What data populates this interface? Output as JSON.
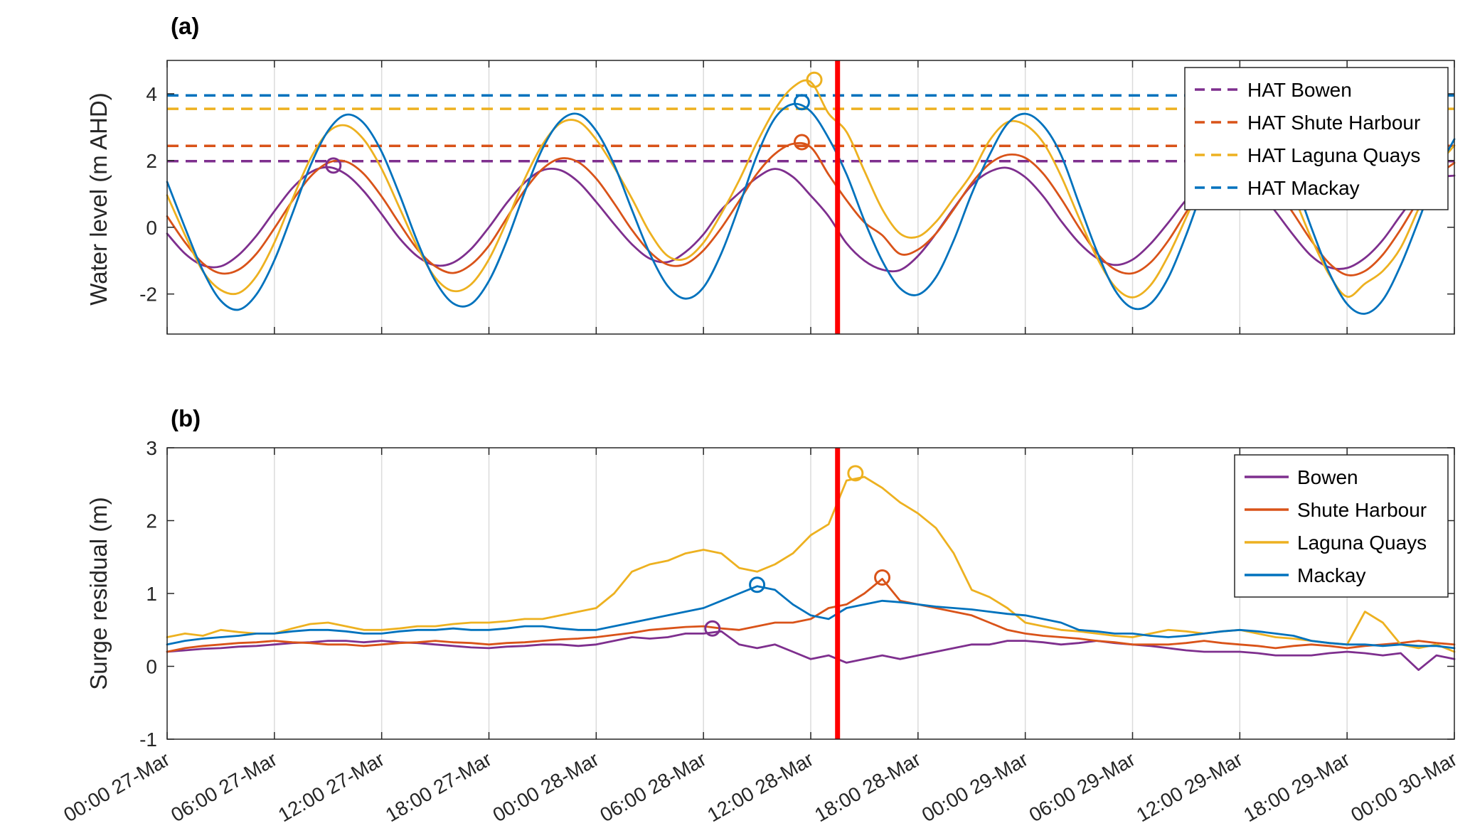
{
  "figure": {
    "background": "#ffffff",
    "axis_color": "#262626",
    "grid_color": "#dbdbdb",
    "event_line_color": "#ff0000",
    "station_colors": {
      "Bowen": "#7E2F8E",
      "Shute Harbour": "#D95319",
      "Laguna Quays": "#EDB120",
      "Mackay": "#0072BD"
    }
  },
  "chart_data": [
    {
      "type": "line",
      "panel_label": "(a)",
      "ylabel": "Water level (m AHD)",
      "xlabel": "",
      "ylim": [
        -3.2,
        5.0
      ],
      "yticks": [
        -2,
        0,
        2,
        4
      ],
      "xlim": [
        0,
        72
      ],
      "x_unit": "hours since 00:00 27-Mar",
      "x_start": 0,
      "x_step": 1,
      "xticks": [
        0,
        6,
        12,
        18,
        24,
        30,
        36,
        42,
        48,
        54,
        60,
        66,
        72
      ],
      "xtick_labels": [],
      "grid": "vertical",
      "legend": {
        "position": "top-right",
        "source": "hat_lines",
        "line_style": "dashed"
      },
      "hat_lines": [
        {
          "label": "HAT Bowen",
          "value": 1.98,
          "color": "#7E2F8E"
        },
        {
          "label": "HAT Shute Harbour",
          "value": 2.44,
          "color": "#D95319"
        },
        {
          "label": "HAT Laguna Quays",
          "value": 3.55,
          "color": "#EDB120"
        },
        {
          "label": "HAT Mackay",
          "value": 3.95,
          "color": "#0072BD"
        }
      ],
      "event_line": {
        "x_hours": 37.5,
        "color": "#ff0000"
      },
      "series": [
        {
          "name": "Bowen",
          "color": "#7E2F8E",
          "values": [
            -0.19,
            -0.79,
            -1.14,
            -1.17,
            -0.83,
            -0.25,
            0.48,
            1.17,
            1.64,
            1.8,
            1.59,
            1.08,
            0.39,
            -0.33,
            -0.87,
            -1.14,
            -1.06,
            -0.65,
            0.0,
            0.73,
            1.34,
            1.71,
            1.71,
            1.36,
            0.76,
            0.1,
            -0.51,
            -0.94,
            -1.04,
            -0.74,
            -0.21,
            0.52,
            1.03,
            1.49,
            1.75,
            1.51,
            0.95,
            0.33,
            -0.48,
            -1.0,
            -1.27,
            -1.28,
            -0.86,
            -0.19,
            0.57,
            1.26,
            1.66,
            1.78,
            1.5,
            0.93,
            0.19,
            -0.46,
            -0.92,
            -1.13,
            -0.97,
            -0.5,
            0.14,
            0.82,
            1.35,
            1.63,
            1.56,
            1.14,
            0.47,
            -0.24,
            -0.86,
            -1.2,
            -1.22,
            -0.92,
            -0.38,
            0.36,
            1.05,
            1.46,
            1.55
          ]
        },
        {
          "name": "Shute Harbour",
          "color": "#D95319",
          "values": [
            0.33,
            -0.45,
            -1.08,
            -1.38,
            -1.27,
            -0.79,
            -0.03,
            0.79,
            1.51,
            1.93,
            1.97,
            1.6,
            0.92,
            0.11,
            -0.66,
            -1.17,
            -1.37,
            -1.12,
            -0.55,
            0.28,
            1.11,
            1.75,
            2.06,
            1.95,
            1.46,
            0.72,
            -0.08,
            -0.74,
            -1.12,
            -1.1,
            -0.69,
            -0.02,
            0.79,
            1.61,
            2.2,
            2.5,
            2.4,
            1.58,
            0.81,
            0.15,
            -0.24,
            -0.8,
            -0.67,
            -0.19,
            0.54,
            1.32,
            1.9,
            2.17,
            2.08,
            1.61,
            0.86,
            0.0,
            -0.77,
            -1.26,
            -1.38,
            -1.06,
            -0.4,
            0.45,
            1.27,
            1.81,
            2.0,
            1.77,
            1.17,
            0.41,
            -0.4,
            -1.08,
            -1.43,
            -1.31,
            -0.82,
            -0.06,
            0.81,
            1.51,
            1.93
          ]
        },
        {
          "name": "Laguna Quays",
          "color": "#EDB120",
          "values": [
            0.96,
            -0.23,
            -1.32,
            -1.88,
            -1.97,
            -1.46,
            -0.46,
            0.83,
            2.04,
            2.85,
            3.05,
            2.63,
            1.75,
            0.58,
            -0.59,
            -1.51,
            -1.91,
            -1.71,
            -0.96,
            0.18,
            1.45,
            2.48,
            3.12,
            3.17,
            2.63,
            1.8,
            0.86,
            -0.16,
            -0.86,
            -0.94,
            -0.46,
            0.41,
            1.41,
            2.55,
            3.53,
            4.2,
            4.35,
            3.41,
            2.86,
            1.69,
            0.54,
            -0.19,
            -0.28,
            0.16,
            0.87,
            1.61,
            2.6,
            3.15,
            3.07,
            2.54,
            1.54,
            0.29,
            -0.9,
            -1.77,
            -2.1,
            -1.74,
            -0.85,
            0.29,
            1.49,
            2.47,
            2.97,
            2.8,
            2.05,
            0.94,
            -0.33,
            -1.42,
            -2.08,
            -1.69,
            -1.31,
            -0.61,
            0.56,
            1.76,
            2.45
          ]
        },
        {
          "name": "Mackay",
          "color": "#0072BD",
          "values": [
            1.36,
            -0.01,
            -1.3,
            -2.2,
            -2.47,
            -2.01,
            -0.99,
            0.4,
            1.83,
            2.89,
            3.37,
            3.12,
            2.26,
            0.98,
            -0.43,
            -1.61,
            -2.28,
            -2.3,
            -1.61,
            -0.41,
            1.05,
            2.36,
            3.19,
            3.39,
            2.89,
            1.88,
            0.52,
            -0.79,
            -1.76,
            -2.14,
            -1.8,
            -0.78,
            0.64,
            2.16,
            3.27,
            3.69,
            3.47,
            2.67,
            1.59,
            0.2,
            -1.01,
            -1.83,
            -2.02,
            -1.5,
            -0.39,
            1.0,
            2.17,
            3.1,
            3.4,
            3.05,
            2.17,
            0.72,
            -0.71,
            -1.87,
            -2.42,
            -2.29,
            -1.51,
            -0.23,
            1.24,
            2.5,
            3.27,
            3.32,
            2.67,
            1.48,
            -0.01,
            -1.36,
            -2.3,
            -2.59,
            -2.18,
            -1.14,
            0.2,
            1.61,
            2.64
          ]
        }
      ],
      "peak_markers": [
        {
          "series": "Bowen",
          "x_hours": 9.3,
          "value": 1.85
        },
        {
          "series": "Shute Harbour",
          "x_hours": 35.5,
          "value": 2.55
        },
        {
          "series": "Laguna Quays",
          "x_hours": 36.2,
          "value": 4.42
        },
        {
          "series": "Mackay",
          "x_hours": 35.5,
          "value": 3.75
        }
      ]
    },
    {
      "type": "line",
      "panel_label": "(b)",
      "ylabel": "Surge residual (m)",
      "xlabel": "",
      "ylim": [
        -1,
        3
      ],
      "yticks": [
        -1,
        0,
        1,
        2,
        3
      ],
      "xlim": [
        0,
        72
      ],
      "x_unit": "hours since 00:00 27-Mar",
      "x_start": 0,
      "x_step": 1,
      "xticks": [
        0,
        6,
        12,
        18,
        24,
        30,
        36,
        42,
        48,
        54,
        60,
        66,
        72
      ],
      "xtick_labels": [
        "00:00 27-Mar",
        "06:00 27-Mar",
        "12:00 27-Mar",
        "18:00 27-Mar",
        "00:00 28-Mar",
        "06:00 28-Mar",
        "12:00 28-Mar",
        "18:00 28-Mar",
        "00:00 29-Mar",
        "06:00 29-Mar",
        "12:00 29-Mar",
        "18:00 29-Mar",
        "00:00 30-Mar"
      ],
      "grid": "vertical",
      "legend": {
        "position": "top-right",
        "source": "series",
        "line_style": "solid"
      },
      "event_line": {
        "x_hours": 37.5,
        "color": "#ff0000"
      },
      "series": [
        {
          "name": "Bowen",
          "color": "#7E2F8E",
          "values": [
            0.2,
            0.22,
            0.24,
            0.25,
            0.27,
            0.28,
            0.3,
            0.32,
            0.33,
            0.35,
            0.35,
            0.33,
            0.35,
            0.33,
            0.32,
            0.3,
            0.28,
            0.26,
            0.25,
            0.27,
            0.28,
            0.3,
            0.3,
            0.28,
            0.3,
            0.35,
            0.4,
            0.38,
            0.4,
            0.45,
            0.45,
            0.48,
            0.3,
            0.25,
            0.3,
            0.2,
            0.1,
            0.15,
            0.05,
            0.1,
            0.15,
            0.1,
            0.15,
            0.2,
            0.25,
            0.3,
            0.3,
            0.35,
            0.35,
            0.33,
            0.3,
            0.32,
            0.35,
            0.32,
            0.3,
            0.28,
            0.25,
            0.22,
            0.2,
            0.2,
            0.2,
            0.18,
            0.15,
            0.15,
            0.15,
            0.18,
            0.2,
            0.18,
            0.15,
            0.18,
            -0.05,
            0.15,
            0.1
          ]
        },
        {
          "name": "Shute Harbour",
          "color": "#D95319",
          "values": [
            0.2,
            0.25,
            0.28,
            0.3,
            0.32,
            0.33,
            0.35,
            0.33,
            0.32,
            0.3,
            0.3,
            0.28,
            0.3,
            0.32,
            0.33,
            0.35,
            0.33,
            0.32,
            0.3,
            0.32,
            0.33,
            0.35,
            0.37,
            0.38,
            0.4,
            0.43,
            0.46,
            0.5,
            0.52,
            0.54,
            0.55,
            0.52,
            0.5,
            0.55,
            0.6,
            0.6,
            0.65,
            0.8,
            0.85,
            1.0,
            1.2,
            0.9,
            0.85,
            0.8,
            0.75,
            0.7,
            0.6,
            0.5,
            0.45,
            0.42,
            0.4,
            0.38,
            0.35,
            0.33,
            0.3,
            0.3,
            0.3,
            0.32,
            0.35,
            0.32,
            0.3,
            0.28,
            0.25,
            0.28,
            0.3,
            0.28,
            0.25,
            0.28,
            0.3,
            0.32,
            0.35,
            0.32,
            0.3
          ]
        },
        {
          "name": "Laguna Quays",
          "color": "#EDB120",
          "values": [
            0.4,
            0.45,
            0.42,
            0.5,
            0.47,
            0.45,
            0.45,
            0.52,
            0.58,
            0.6,
            0.55,
            0.5,
            0.5,
            0.52,
            0.55,
            0.55,
            0.58,
            0.6,
            0.6,
            0.62,
            0.65,
            0.65,
            0.7,
            0.75,
            0.8,
            1.0,
            1.3,
            1.4,
            1.45,
            1.55,
            1.6,
            1.55,
            1.35,
            1.3,
            1.4,
            1.55,
            1.8,
            1.95,
            2.55,
            2.6,
            2.45,
            2.25,
            2.1,
            1.9,
            1.55,
            1.05,
            0.95,
            0.8,
            0.6,
            0.55,
            0.5,
            0.48,
            0.45,
            0.42,
            0.4,
            0.45,
            0.5,
            0.48,
            0.45,
            0.48,
            0.5,
            0.45,
            0.4,
            0.38,
            0.35,
            0.32,
            0.3,
            0.75,
            0.6,
            0.3,
            0.25,
            0.3,
            0.2
          ]
        },
        {
          "name": "Mackay",
          "color": "#0072BD",
          "values": [
            0.3,
            0.35,
            0.38,
            0.4,
            0.42,
            0.45,
            0.45,
            0.48,
            0.5,
            0.5,
            0.48,
            0.45,
            0.45,
            0.48,
            0.5,
            0.5,
            0.52,
            0.5,
            0.5,
            0.52,
            0.55,
            0.55,
            0.52,
            0.5,
            0.5,
            0.55,
            0.6,
            0.65,
            0.7,
            0.75,
            0.8,
            0.9,
            1.0,
            1.1,
            1.05,
            0.85,
            0.7,
            0.65,
            0.8,
            0.85,
            0.9,
            0.88,
            0.85,
            0.82,
            0.8,
            0.78,
            0.75,
            0.72,
            0.7,
            0.65,
            0.6,
            0.5,
            0.48,
            0.45,
            0.45,
            0.42,
            0.4,
            0.42,
            0.45,
            0.48,
            0.5,
            0.48,
            0.45,
            0.42,
            0.35,
            0.32,
            0.3,
            0.3,
            0.28,
            0.3,
            0.28,
            0.28,
            0.25
          ]
        }
      ],
      "peak_markers": [
        {
          "series": "Bowen",
          "x_hours": 30.5,
          "value": 0.52
        },
        {
          "series": "Mackay",
          "x_hours": 33.0,
          "value": 1.12
        },
        {
          "series": "Laguna Quays",
          "x_hours": 38.5,
          "value": 2.65
        },
        {
          "series": "Shute Harbour",
          "x_hours": 40.0,
          "value": 1.22
        }
      ]
    }
  ]
}
